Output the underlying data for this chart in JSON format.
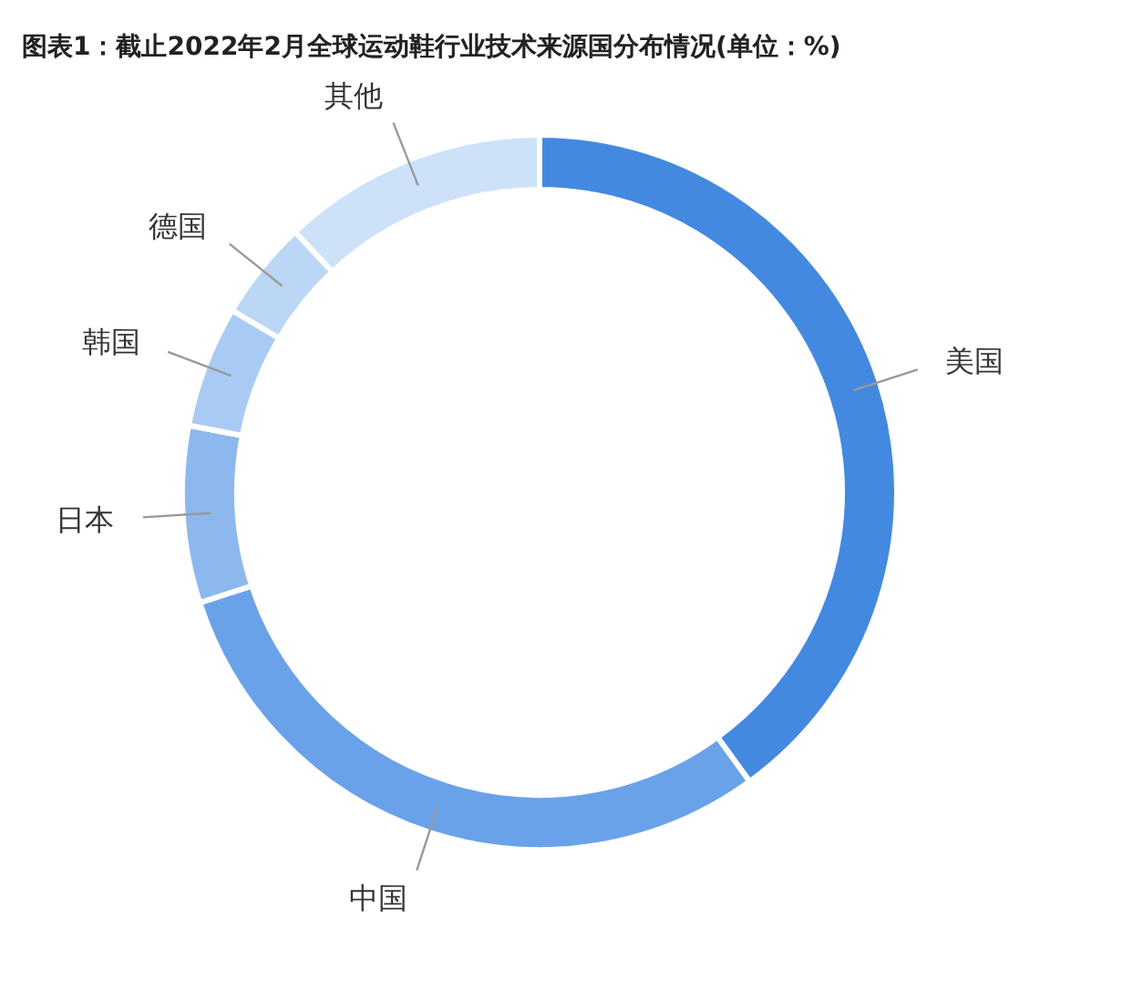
{
  "chart_data": {
    "type": "donut",
    "title": "图表1：截止2022年2月全球运动鞋行业技术来源国分布情况(单位：%)",
    "categories": [
      "美国",
      "中国",
      "日本",
      "韩国",
      "德国",
      "其他"
    ],
    "values": [
      40,
      30,
      8,
      5.5,
      4.5,
      12
    ],
    "colors": [
      "#4389e0",
      "#6aa2ea",
      "#8cb8ee",
      "#a9cbf3",
      "#bcd6f5",
      "#cde2f9"
    ],
    "legend": false
  }
}
